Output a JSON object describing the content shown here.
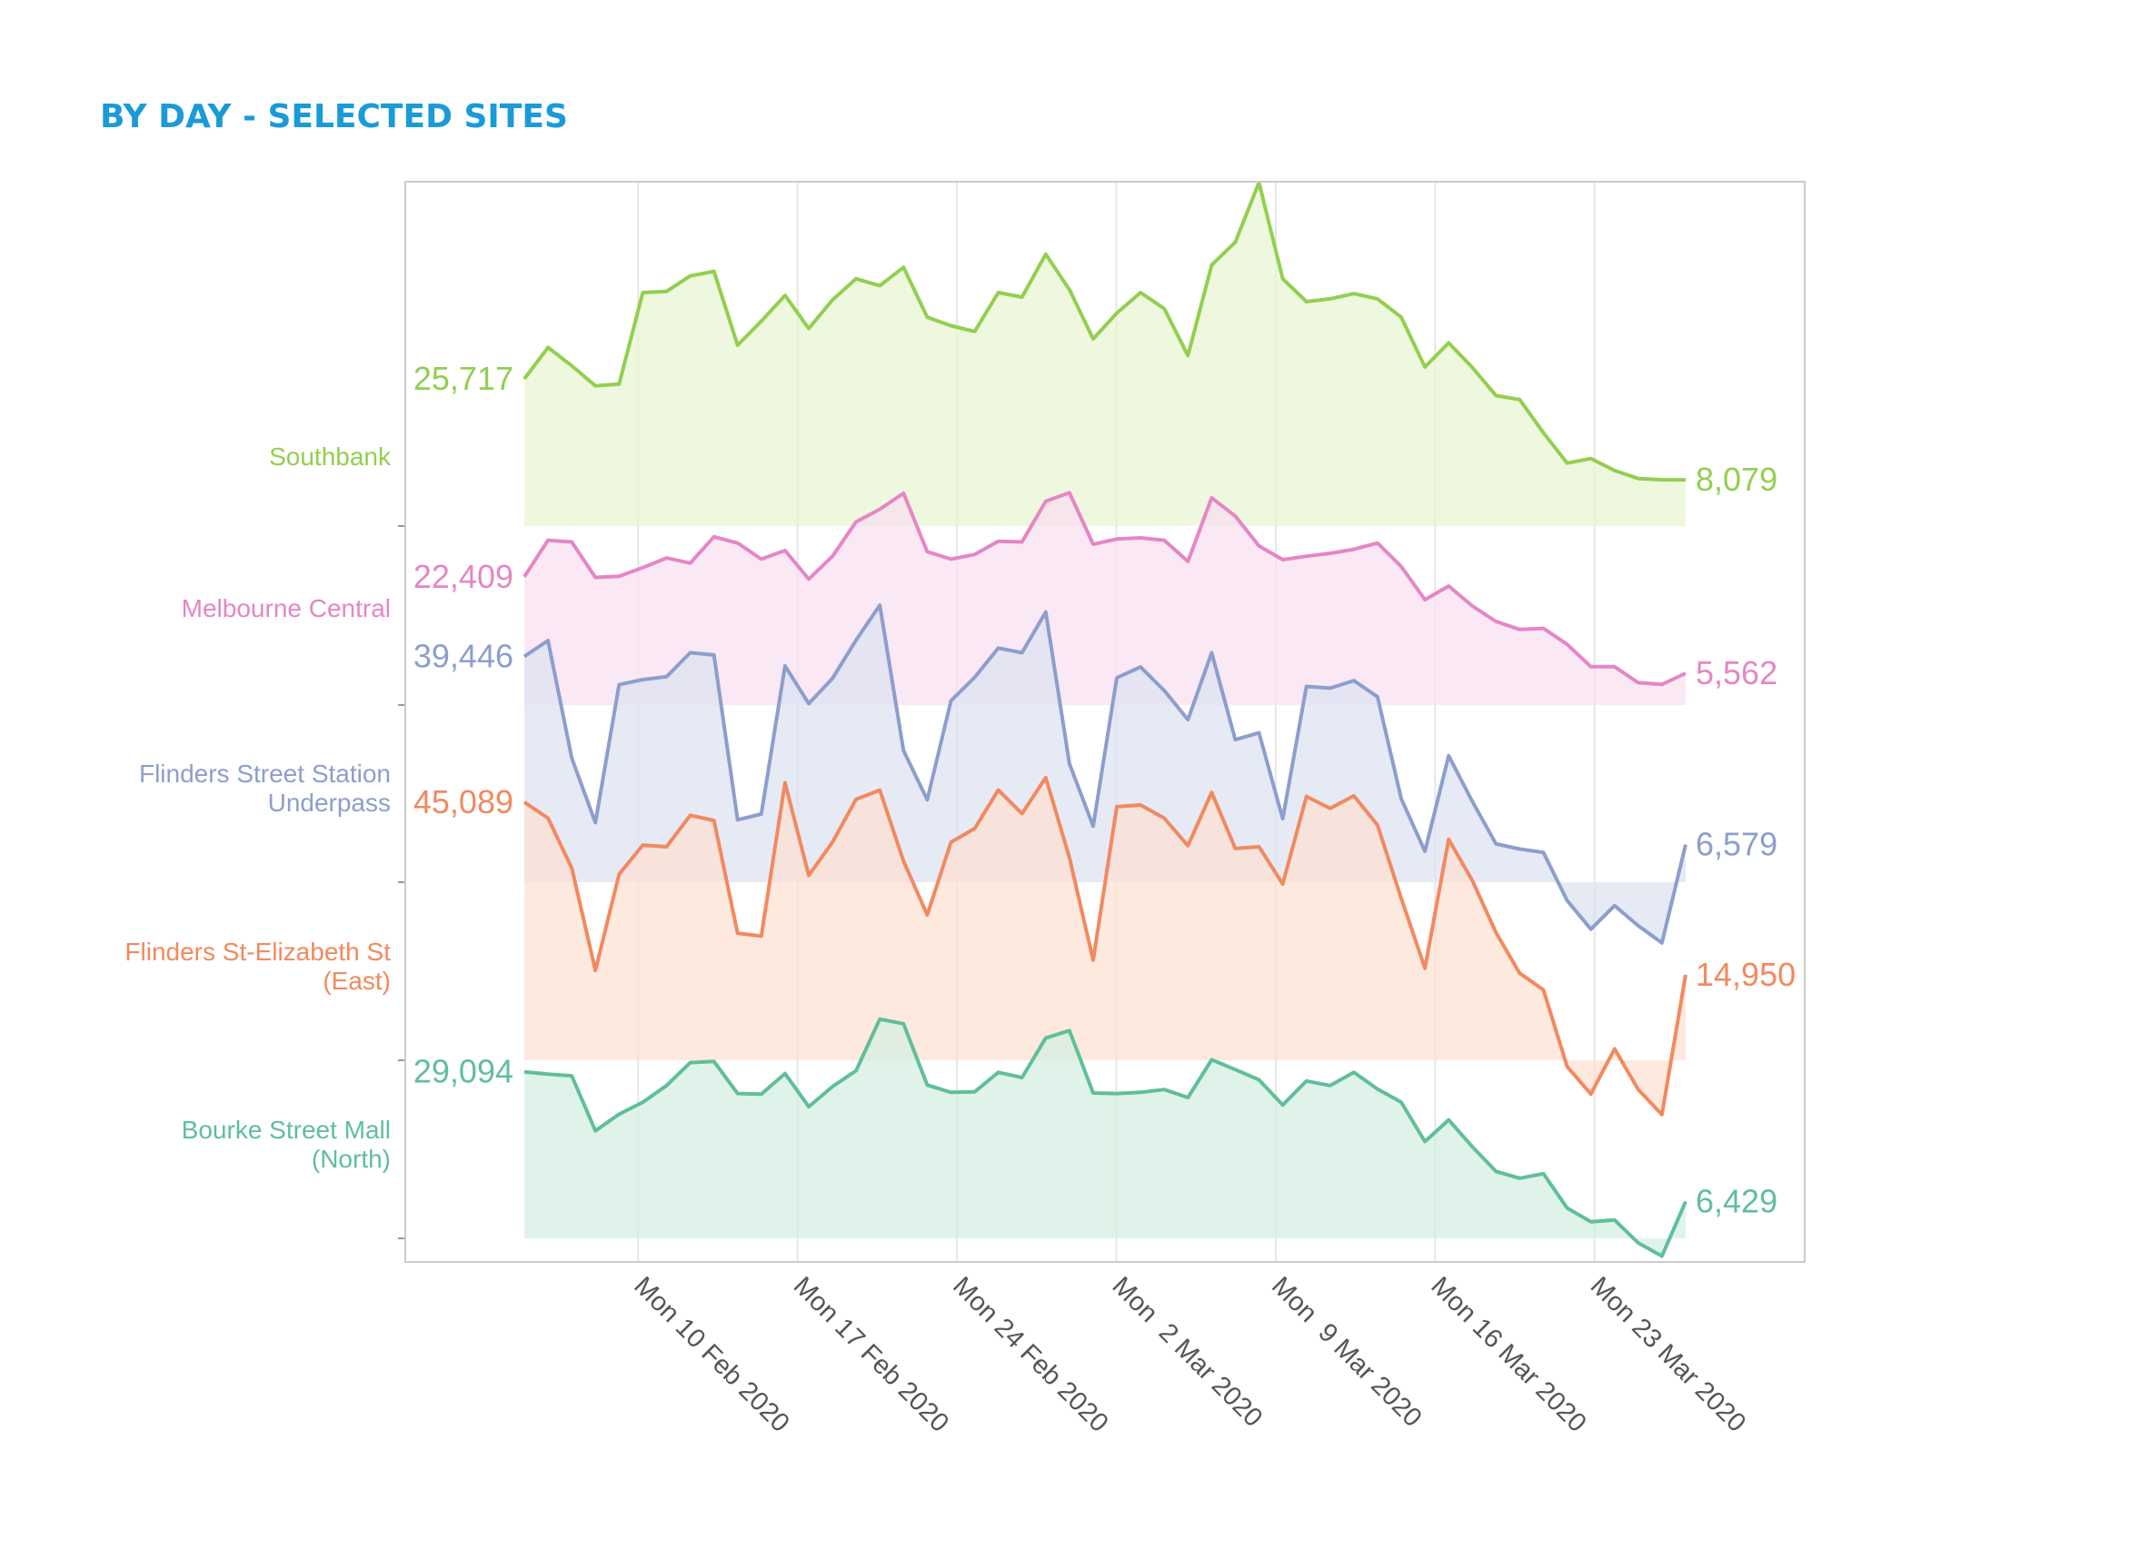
{
  "page": {
    "title": "BY DAY - SELECTED SITES"
  },
  "chart_data": {
    "type": "area",
    "layout": "ridgeline",
    "title": "BY DAY - SELECTED SITES",
    "x_start": "2020-02-05",
    "x_end": "2020-03-27",
    "x_ticks": [
      {
        "date": "2020-02-10",
        "label": "Mon 10 Feb 2020"
      },
      {
        "date": "2020-02-17",
        "label": "Mon 17 Feb 2020"
      },
      {
        "date": "2020-02-24",
        "label": "Mon 24 Feb 2020"
      },
      {
        "date": "2020-03-02",
        "label": "Mon  2 Mar 2020"
      },
      {
        "date": "2020-03-09",
        "label": "Mon  9 Mar 2020"
      },
      {
        "date": "2020-03-16",
        "label": "Mon 16 Mar 2020"
      },
      {
        "date": "2020-03-23",
        "label": "Mon 23 Mar 2020"
      }
    ],
    "grid": true,
    "series": [
      {
        "name": "Southbank",
        "color": "#92cf4f",
        "fill": "#e7f5d1",
        "first_label": "25,717",
        "last_label": "8,079",
        "values": [
          25717,
          31200,
          28000,
          24500,
          24800,
          40800,
          41000,
          43700,
          44500,
          31600,
          35800,
          40300,
          34500,
          39500,
          43200,
          42000,
          45200,
          36500,
          35000,
          34000,
          40800,
          40000,
          47500,
          41300,
          32700,
          37200,
          40800,
          38000,
          29800,
          45600,
          49600,
          60000,
          43200,
          39200,
          39700,
          40600,
          39700,
          36500,
          27800,
          32000,
          27700,
          22800,
          22100,
          16300,
          11000,
          11800,
          9700,
          8300,
          8100,
          8079
        ]
      },
      {
        "name": "Melbourne Central",
        "color": "#e586c5",
        "fill": "#f9dff1",
        "first_label": "22,409",
        "last_label": "5,562",
        "values": [
          22409,
          28800,
          28500,
          22300,
          22500,
          24000,
          25700,
          24800,
          29400,
          28300,
          25500,
          27000,
          22000,
          26000,
          32000,
          34200,
          37000,
          26800,
          25500,
          26300,
          28600,
          28500,
          35600,
          37100,
          28100,
          29000,
          29200,
          28800,
          25100,
          36200,
          33000,
          27800,
          25400,
          26000,
          26500,
          27200,
          28300,
          24200,
          18400,
          20800,
          17300,
          14600,
          13200,
          13400,
          10600,
          6700,
          6700,
          3900,
          3600,
          5562
        ]
      },
      {
        "name": "Flinders Street Station\nUnderpass",
        "color": "#8c9ecc",
        "fill": "#dde2f1",
        "first_label": "39,446",
        "last_label": "6,579",
        "values": [
          39446,
          42200,
          21700,
          10400,
          34500,
          35400,
          35900,
          40100,
          39700,
          10900,
          11900,
          37800,
          31200,
          35600,
          42300,
          48400,
          23000,
          14400,
          31700,
          35800,
          40900,
          40100,
          47200,
          20700,
          9800,
          35700,
          37600,
          33500,
          28400,
          40100,
          24900,
          26100,
          11100,
          34200,
          33900,
          35200,
          32400,
          14600,
          5400,
          22100,
          14100,
          6700,
          5800,
          5200,
          -3200,
          -8200,
          -4100,
          -7600,
          -10600,
          6579
        ]
      },
      {
        "name": "Flinders St-Elizabeth St\n(East)",
        "color": "#f2895f",
        "fill": "#fde0d3",
        "first_label": "45,089",
        "last_label": "14,950",
        "values": [
          45089,
          42300,
          33600,
          15700,
          32500,
          37600,
          37300,
          42800,
          41900,
          22200,
          21700,
          48500,
          32300,
          38100,
          45600,
          47200,
          34800,
          25400,
          38100,
          40500,
          47200,
          43100,
          49400,
          35400,
          17500,
          44300,
          44600,
          42300,
          37500,
          46800,
          37000,
          37300,
          30800,
          46100,
          44000,
          46200,
          41100,
          28300,
          16100,
          38600,
          31400,
          22300,
          15200,
          12300,
          -1100,
          -5900,
          2000,
          -5100,
          -9500,
          14950
        ]
      },
      {
        "name": "Bourke Street Mall\n(North)",
        "color": "#5fbf99",
        "fill": "#d4eee2",
        "first_label": "29,094",
        "last_label": "6,429",
        "values": [
          29094,
          28700,
          28400,
          18800,
          21700,
          23800,
          26700,
          30700,
          30900,
          25300,
          25200,
          28800,
          23000,
          26500,
          29300,
          38300,
          37500,
          26800,
          25500,
          25600,
          29000,
          28100,
          35000,
          36300,
          25400,
          25300,
          25500,
          26000,
          24600,
          31200,
          29500,
          27700,
          23300,
          27500,
          26700,
          29000,
          26100,
          23800,
          16900,
          20700,
          16000,
          11700,
          10500,
          11300,
          5300,
          2900,
          3200,
          -800,
          -3100,
          6429
        ]
      }
    ]
  }
}
